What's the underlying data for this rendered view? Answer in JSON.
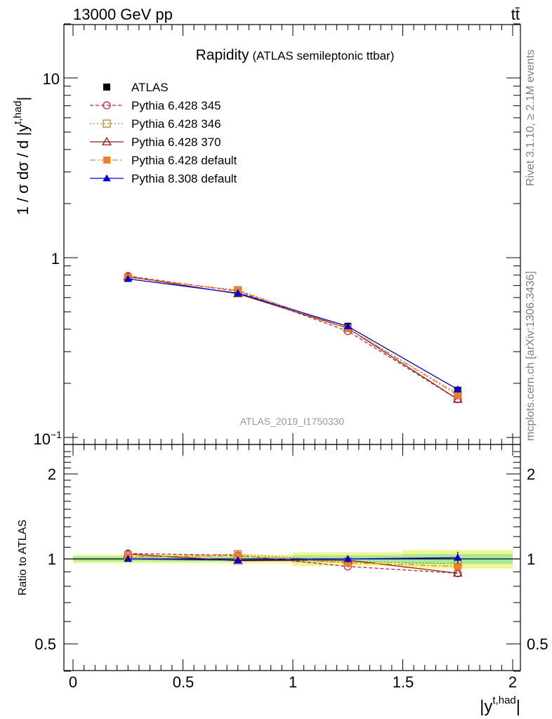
{
  "header": {
    "left": "13000 GeV pp",
    "right": "tt̄"
  },
  "side_text": {
    "top": "Rivet 3.1.10, ≥ 2.1M events",
    "bottom": "mcplots.cern.ch [arXiv:1306.3436]"
  },
  "watermark": "ATLAS_2019_I1750330",
  "chart_data": [
    {
      "type": "line",
      "panel": "main",
      "title": "Rapidity",
      "subtitle": "(ATLAS semileptonic ttbar)",
      "ylabel_main": "1 / σ dσ / d |y",
      "ylabel_sup": "t,had",
      "ylabel_close": "|",
      "yscale": "log",
      "ylim": [
        0.1,
        20
      ],
      "xlim": [
        -0.05,
        2.05
      ],
      "y_tick_labels": [
        "10",
        "1",
        "10"
      ],
      "y_tick_last_sup": "−1",
      "legend_position": "top-left",
      "x": [
        0.25,
        0.75,
        1.25,
        1.75
      ],
      "series": [
        {
          "name": "ATLAS",
          "values": [
            0.768,
            0.64,
            0.415,
            0.183
          ],
          "color": "#000000",
          "marker": "square-filled",
          "dash": ""
        },
        {
          "name": "Pythia 6.428 345",
          "values": [
            0.79,
            0.65,
            0.39,
            0.163
          ],
          "color": "#b22c3c",
          "marker": "circle-open",
          "dash": "5,3"
        },
        {
          "name": "Pythia 6.428 346",
          "values": [
            0.775,
            0.66,
            0.405,
            0.175
          ],
          "color": "#a8872a",
          "marker": "square-open",
          "dash": "2,3"
        },
        {
          "name": "Pythia 6.428 370",
          "values": [
            0.785,
            0.63,
            0.405,
            0.163
          ],
          "color": "#8b1a1a",
          "marker": "triangle-open",
          "dash": ""
        },
        {
          "name": "Pythia 6.428 default",
          "values": [
            0.778,
            0.655,
            0.405,
            0.172
          ],
          "color": "#f07d28",
          "marker": "square-filled",
          "dash": "8,3,2,3"
        },
        {
          "name": "Pythia 8.308 default",
          "values": [
            0.762,
            0.635,
            0.415,
            0.185
          ],
          "color": "#0000d0",
          "marker": "triangle-filled",
          "dash": ""
        }
      ]
    },
    {
      "type": "line",
      "panel": "ratio",
      "ylabel": "Ratio to ATLAS",
      "xlabel_main": "|y",
      "xlabel_sup": "t,had",
      "xlabel_close": "|",
      "ylim": [
        0.4,
        2.4
      ],
      "xlim": [
        -0.05,
        2.05
      ],
      "x_tick_labels": [
        "0",
        "0.5",
        "1",
        "1.5",
        "2"
      ],
      "y_tick_labels": [
        "0.5",
        "1",
        "2"
      ],
      "x": [
        0.25,
        0.75,
        1.25,
        1.75
      ],
      "data_band": {
        "edges": [
          0,
          0.5,
          1,
          1.5,
          2
        ],
        "inner": [
          0.02,
          0.02,
          0.03,
          0.04
        ],
        "outer": [
          0.035,
          0.035,
          0.055,
          0.075
        ]
      },
      "series": [
        {
          "name": "ATLAS",
          "values": [
            1.0,
            1.0,
            1.0,
            1.0
          ],
          "err": [
            0.02,
            0.02,
            0.03,
            0.05
          ],
          "color": "#000000"
        },
        {
          "name": "Pythia 6.428 345",
          "values": [
            1.045,
            1.03,
            0.94,
            0.89
          ],
          "color": "#b22c3c",
          "marker": "circle-open",
          "dash": "5,3"
        },
        {
          "name": "Pythia 6.428 346",
          "values": [
            1.01,
            1.04,
            0.98,
            0.96
          ],
          "color": "#a8872a",
          "marker": "square-open",
          "dash": "2,3"
        },
        {
          "name": "Pythia 6.428 370",
          "values": [
            1.04,
            0.985,
            0.99,
            0.89
          ],
          "color": "#8b1a1a",
          "marker": "triangle-open",
          "dash": ""
        },
        {
          "name": "Pythia 6.428 default",
          "values": [
            1.02,
            1.025,
            0.97,
            0.94
          ],
          "color": "#f07d28",
          "marker": "square-filled",
          "dash": "8,3,2,3"
        },
        {
          "name": "Pythia 8.308 default",
          "values": [
            1.0,
            0.99,
            1.0,
            1.01
          ],
          "err": [
            0.02,
            0.02,
            0.03,
            0.05
          ],
          "color": "#0000d0",
          "marker": "triangle-filled",
          "dash": ""
        }
      ]
    }
  ]
}
